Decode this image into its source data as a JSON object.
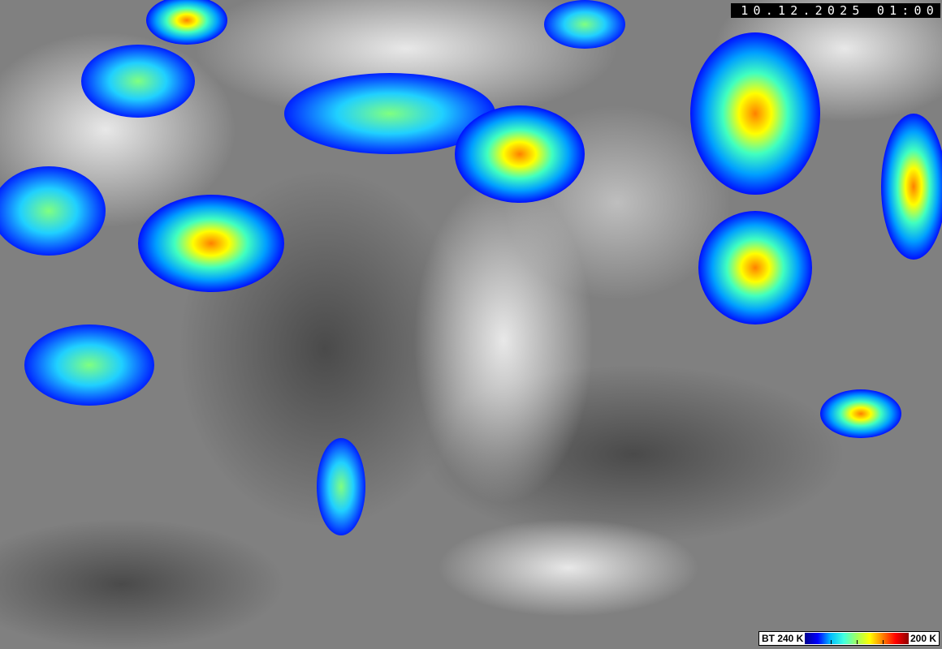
{
  "image": {
    "type": "infrared satellite imagery",
    "timestamp": "10.12.2025 01:00"
  },
  "colorbar": {
    "label_low": "BT 240 K",
    "label_high": "200 K",
    "colors": [
      "#00008f",
      "#0000ff",
      "#00bfff",
      "#40ffe0",
      "#a0ff60",
      "#ffff00",
      "#ff8000",
      "#ff0000",
      "#8f0000"
    ]
  }
}
